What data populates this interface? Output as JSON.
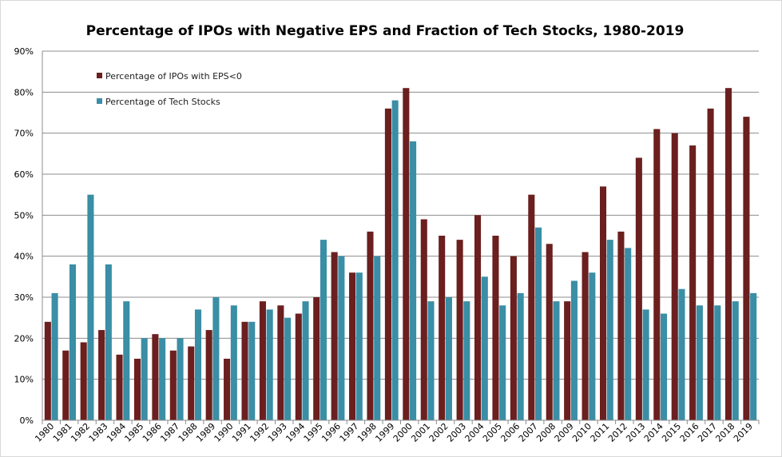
{
  "chart_data": {
    "type": "bar",
    "title": "Percentage of IPOs with Negative EPS and Fraction of Tech Stocks, 1980-2019",
    "xlabel": "",
    "ylabel": "",
    "ylim": [
      0,
      90
    ],
    "yticks": [
      "0%",
      "10%",
      "20%",
      "30%",
      "40%",
      "50%",
      "60%",
      "70%",
      "80%",
      "90%"
    ],
    "grid": true,
    "legend_position": "top-left",
    "categories": [
      "1980",
      "1981",
      "1982",
      "1983",
      "1984",
      "1985",
      "1986",
      "1987",
      "1988",
      "1989",
      "1990",
      "1991",
      "1992",
      "1993",
      "1994",
      "1995",
      "1996",
      "1997",
      "1998",
      "1999",
      "2000",
      "2001",
      "2002",
      "2003",
      "2004",
      "2005",
      "2006",
      "2007",
      "2008",
      "2009",
      "2010",
      "2011",
      "2012",
      "2013",
      "2014",
      "2015",
      "2016",
      "2017",
      "2018",
      "2019"
    ],
    "series": [
      {
        "name": "Percentage of IPOs with EPS<0",
        "color": "#6b1f1f",
        "values": [
          24,
          17,
          19,
          22,
          16,
          15,
          21,
          17,
          18,
          22,
          15,
          24,
          29,
          28,
          26,
          30,
          41,
          36,
          46,
          76,
          81,
          49,
          45,
          44,
          50,
          45,
          40,
          55,
          43,
          29,
          41,
          57,
          46,
          64,
          71,
          70,
          67,
          76,
          81,
          74
        ]
      },
      {
        "name": "Percentage of Tech Stocks",
        "color": "#3a8ea5",
        "values": [
          31,
          38,
          55,
          38,
          29,
          20,
          20,
          20,
          27,
          30,
          28,
          24,
          27,
          25,
          29,
          44,
          40,
          36,
          40,
          78,
          68,
          29,
          30,
          29,
          35,
          28,
          31,
          47,
          29,
          34,
          36,
          44,
          42,
          27,
          26,
          32,
          28,
          28,
          29,
          31
        ]
      }
    ]
  }
}
